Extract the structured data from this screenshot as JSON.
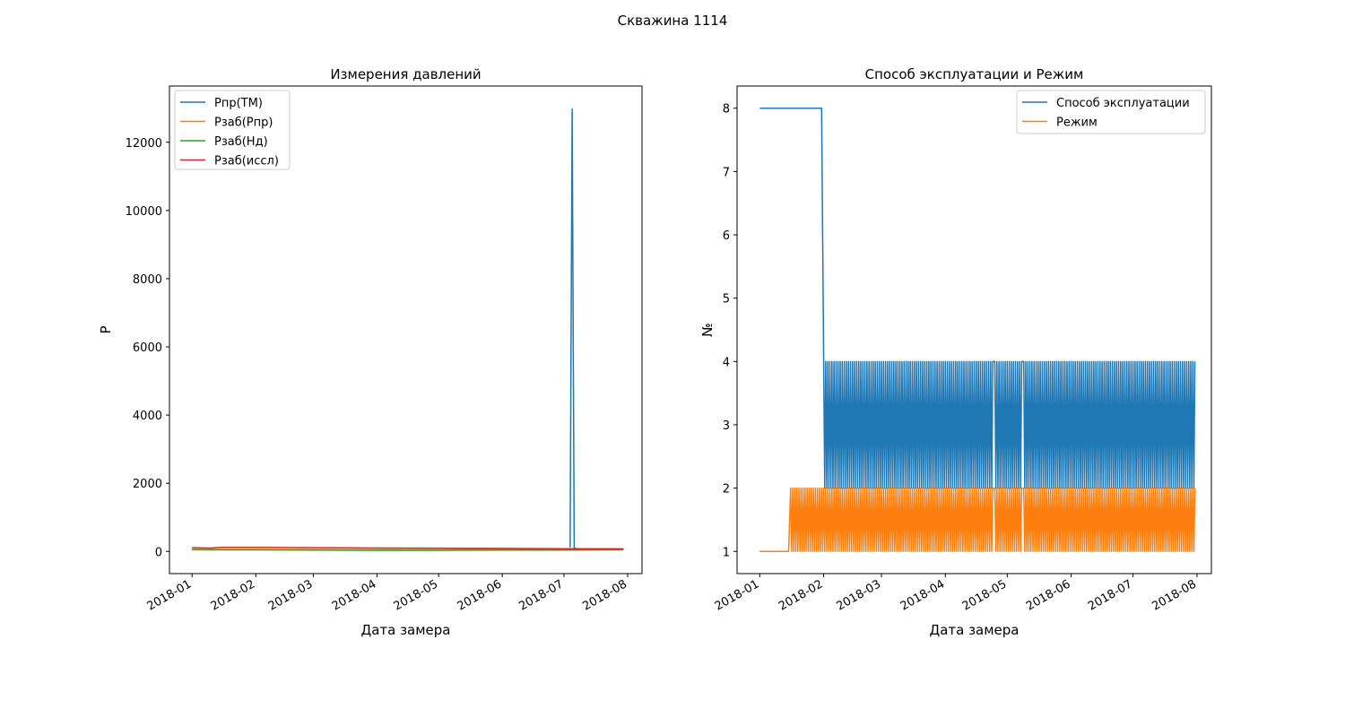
{
  "figure": {
    "suptitle": "Скважина 1114"
  },
  "chart_data": [
    {
      "type": "line",
      "title": "Измерения давлений",
      "xlabel": "Дата замера",
      "ylabel": "P",
      "x_axis": "date",
      "xlim": [
        "2017-12-21",
        "2018-08-08"
      ],
      "ylim": [
        -650,
        13650
      ],
      "x_ticks": [
        "2018-01",
        "2018-02",
        "2018-03",
        "2018-04",
        "2018-05",
        "2018-06",
        "2018-07",
        "2018-08"
      ],
      "y_ticks": [
        0,
        2000,
        4000,
        6000,
        8000,
        10000,
        12000
      ],
      "legend_position": "upper-left",
      "series": [
        {
          "name": "Рпр(ТМ)",
          "color": "#1f77b4",
          "points": [
            [
              "2018-07-04",
              120
            ],
            [
              "2018-07-05",
              12980
            ],
            [
              "2018-07-06",
              90
            ],
            [
              "2018-07-07",
              90
            ]
          ]
        },
        {
          "name": "Рзаб(Рпр)",
          "color": "#ff7f0e",
          "points": [
            [
              "2018-01-01",
              60
            ],
            [
              "2018-02-01",
              60
            ],
            [
              "2018-03-01",
              55
            ],
            [
              "2018-04-01",
              50
            ],
            [
              "2018-05-01",
              50
            ],
            [
              "2018-06-01",
              55
            ],
            [
              "2018-07-01",
              55
            ],
            [
              "2018-07-30",
              55
            ]
          ]
        },
        {
          "name": "Рзаб(Нд)",
          "color": "#2ca02c",
          "points": [
            [
              "2018-01-01",
              50
            ],
            [
              "2018-02-01",
              45
            ],
            [
              "2018-03-01",
              40
            ],
            [
              "2018-04-01",
              35
            ],
            [
              "2018-05-01",
              35
            ],
            [
              "2018-06-01",
              40
            ],
            [
              "2018-07-01",
              40
            ],
            [
              "2018-07-30",
              45
            ]
          ]
        },
        {
          "name": "Рзаб(иссл)",
          "color": "#d62728",
          "points": [
            [
              "2018-01-01",
              110
            ],
            [
              "2018-01-10",
              100
            ],
            [
              "2018-01-15",
              120
            ],
            [
              "2018-02-01",
              120
            ],
            [
              "2018-03-01",
              110
            ],
            [
              "2018-04-01",
              100
            ],
            [
              "2018-05-01",
              95
            ],
            [
              "2018-06-01",
              90
            ],
            [
              "2018-07-01",
              80
            ],
            [
              "2018-07-30",
              75
            ]
          ]
        }
      ]
    },
    {
      "type": "line",
      "title": "Способ эксплуатации и Режим",
      "xlabel": "Дата замера",
      "ylabel": "№",
      "x_axis": "date",
      "xlim": [
        "2017-12-21",
        "2018-08-08"
      ],
      "ylim": [
        0.65,
        8.35
      ],
      "x_ticks": [
        "2018-01",
        "2018-02",
        "2018-03",
        "2018-04",
        "2018-05",
        "2018-06",
        "2018-07",
        "2018-08"
      ],
      "y_ticks": [
        1,
        2,
        3,
        4,
        5,
        6,
        7,
        8
      ],
      "legend_position": "upper-right",
      "series": [
        {
          "name": "Способ эксплуатации",
          "color": "#1f77b4",
          "segments": [
            {
              "start": "2018-01-01",
              "end": "2018-01-31",
              "value": 8
            },
            {
              "start": "2018-02-01",
              "end": "2018-04-24",
              "alternating": [
                2,
                4
              ]
            },
            {
              "start": "2018-04-25",
              "end": "2018-05-08",
              "alternating": [
                2,
                4
              ]
            },
            {
              "start": "2018-05-09",
              "end": "2018-07-31",
              "alternating": [
                2,
                4
              ]
            }
          ]
        },
        {
          "name": "Режим",
          "color": "#ff7f0e",
          "segments": [
            {
              "start": "2018-01-01",
              "end": "2018-01-15",
              "value": 1
            },
            {
              "start": "2018-01-16",
              "end": "2018-04-24",
              "alternating": [
                1,
                2
              ]
            },
            {
              "start": "2018-04-25",
              "end": "2018-05-08",
              "alternating": [
                1,
                2
              ]
            },
            {
              "start": "2018-05-09",
              "end": "2018-07-31",
              "alternating": [
                1,
                2
              ]
            }
          ]
        }
      ]
    }
  ]
}
